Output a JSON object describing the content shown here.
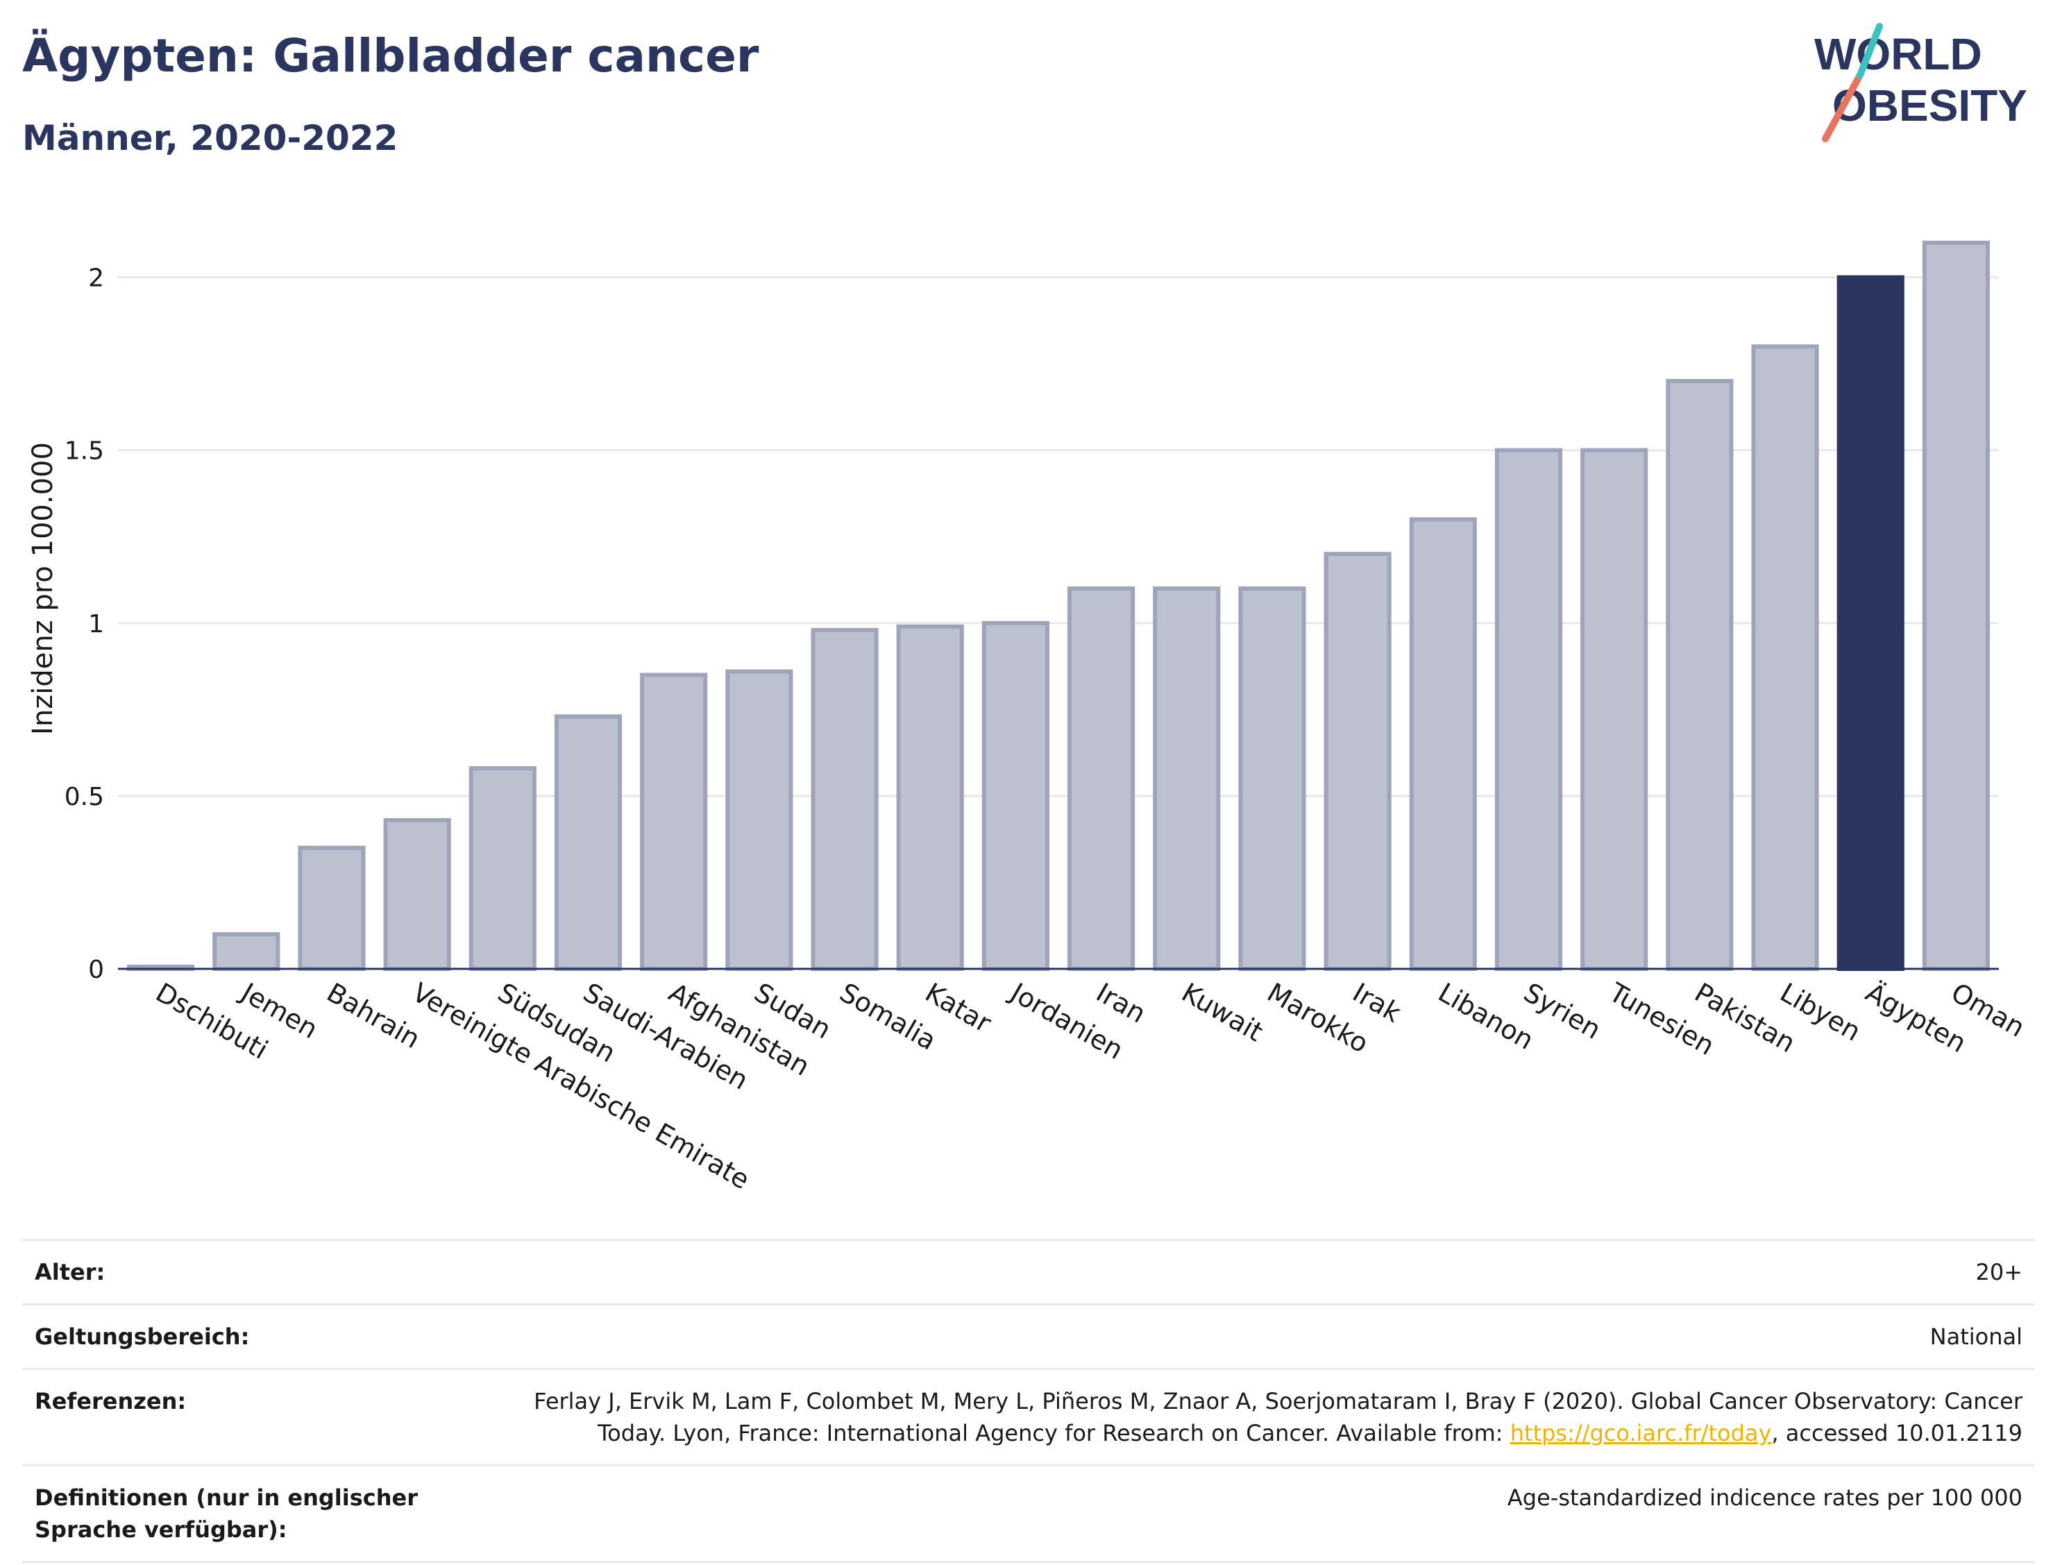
{
  "header": {
    "title": "Ägypten: Gallbladder cancer",
    "subtitle": "Männer, 2020-2022"
  },
  "logo": {
    "line1": "WORLD",
    "line2": "OBESITY"
  },
  "colors": {
    "bar": "#bcc0cf",
    "bar_border": "#9ea4ba",
    "highlight": "#2a3560",
    "grid": "#e6e8ee",
    "axis": "#2a3560"
  },
  "chart_data": {
    "type": "bar",
    "ylabel": "Inzidenz pro 100.000",
    "ylim": [
      0,
      2.2
    ],
    "yticks": [
      0,
      0.5,
      1,
      1.5,
      2
    ],
    "ytick_labels": [
      "0",
      "0.5",
      "1",
      "1.5",
      "2"
    ],
    "highlight": "Ägypten",
    "categories": [
      "Dschibuti",
      "Jemen",
      "Bahrain",
      "Vereinigte Arabische Emirate",
      "Südsudan",
      "Saudi-Arabien",
      "Afghanistan",
      "Sudan",
      "Somalia",
      "Katar",
      "Jordanien",
      "Iran",
      "Kuwait",
      "Marokko",
      "Irak",
      "Libanon",
      "Syrien",
      "Tunesien",
      "Pakistan",
      "Libyen",
      "Ägypten",
      "Oman"
    ],
    "values": [
      0.0,
      0.1,
      0.35,
      0.43,
      0.58,
      0.73,
      0.85,
      0.86,
      0.98,
      0.99,
      1.0,
      1.1,
      1.1,
      1.1,
      1.2,
      1.3,
      1.5,
      1.5,
      1.7,
      1.8,
      2.0,
      2.1
    ]
  },
  "meta": {
    "age_label": "Alter:",
    "age_value": "20+",
    "scope_label": "Geltungsbereich:",
    "scope_value": "National",
    "ref_label": "Referenzen:",
    "ref_text_1": "Ferlay J, Ervik M, Lam F, Colombet M, Mery L, Piñeros M, Znaor A, Soerjomataram I, Bray F (2020). Global Cancer Observatory: Cancer Today. Lyon, France: International Agency for Research on Cancer. Available from: ",
    "ref_link": "https://gco.iarc.fr/today",
    "ref_text_2": ", accessed 10.01.2119",
    "def_label": "Definitionen (nur in englischer Sprache verfügbar):",
    "def_value": "Age-standardized indicence rates per 100 000"
  }
}
